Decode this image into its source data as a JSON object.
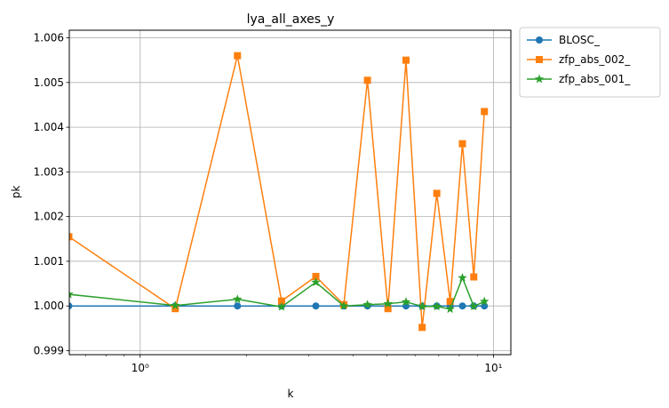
{
  "chart_data": {
    "type": "line",
    "title": "lya_all_axes_y",
    "xlabel": "k",
    "ylabel": "pk",
    "xscale": "log",
    "xlim": [
      0.63,
      11.2
    ],
    "ylim": [
      0.99891,
      1.00617
    ],
    "xticks": [
      {
        "value": 1,
        "label": "10⁰"
      },
      {
        "value": 10,
        "label": "10¹"
      }
    ],
    "yticks": [
      {
        "value": 0.999,
        "label": "0.999"
      },
      {
        "value": 1.0,
        "label": "1.000"
      },
      {
        "value": 1.001,
        "label": "1.001"
      },
      {
        "value": 1.002,
        "label": "1.002"
      },
      {
        "value": 1.003,
        "label": "1.003"
      },
      {
        "value": 1.004,
        "label": "1.004"
      },
      {
        "value": 1.005,
        "label": "1.005"
      },
      {
        "value": 1.006,
        "label": "1.006"
      }
    ],
    "grid": true,
    "legend_position": "outside-top-right",
    "x": [
      0.628,
      1.257,
      1.885,
      2.513,
      3.142,
      3.77,
      4.398,
      5.027,
      5.655,
      6.283,
      6.912,
      7.54,
      8.168,
      8.796,
      9.425
    ],
    "series": [
      {
        "name": "BLOSC_",
        "color": "#1f77b4",
        "marker": "circle",
        "values": [
          1.0,
          1.0,
          1.0,
          1.0,
          1.0,
          1.0,
          1.0,
          1.0,
          1.0,
          1.0,
          1.0,
          1.0,
          1.0,
          1.0,
          1.0
        ]
      },
      {
        "name": "zfp_abs_002_",
        "color": "#ff7f0e",
        "marker": "square",
        "values": [
          1.00155,
          0.99994,
          1.0056,
          1.00011,
          1.00066,
          1.00003,
          1.00505,
          0.99994,
          1.0055,
          0.99952,
          1.00252,
          1.0001,
          1.00363,
          1.00065,
          1.00435
        ]
      },
      {
        "name": "zfp_abs_001_",
        "color": "#2ca02c",
        "marker": "star",
        "values": [
          1.00026,
          1.00001,
          1.00015,
          0.99998,
          1.00053,
          1.0,
          1.00003,
          1.00005,
          1.00009,
          0.99999,
          0.99999,
          0.99993,
          1.00063,
          0.99999,
          1.0001
        ]
      }
    ]
  }
}
